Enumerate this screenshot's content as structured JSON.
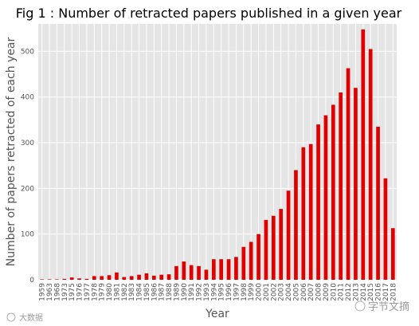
{
  "chart_data": {
    "type": "bar",
    "title": "Fig 1 : Number of retracted papers published in a given year",
    "xlabel": "Year",
    "ylabel": "Number of papers retracted of each year",
    "ylim": [
      0,
      560
    ],
    "yticks": [
      0,
      100,
      200,
      300,
      400,
      500
    ],
    "grid": true,
    "legend": "none",
    "bar_color": "#e00000",
    "background_color": "#e5e5e5",
    "categories": [
      "1959",
      "1963",
      "1968",
      "1973",
      "1975",
      "1976",
      "1977",
      "1978",
      "1979",
      "1980",
      "1981",
      "1982",
      "1983",
      "1984",
      "1985",
      "1986",
      "1987",
      "1988",
      "1989",
      "1990",
      "1991",
      "1992",
      "1993",
      "1994",
      "1995",
      "1996",
      "1997",
      "1998",
      "1999",
      "2000",
      "2001",
      "2002",
      "2003",
      "2004",
      "2005",
      "2006",
      "2007",
      "2008",
      "2009",
      "2010",
      "2011",
      "2012",
      "2013",
      "2014",
      "2015",
      "2016",
      "2017",
      "2018"
    ],
    "values": [
      1,
      1,
      1,
      2,
      5,
      3,
      2,
      8,
      8,
      10,
      16,
      6,
      8,
      11,
      14,
      9,
      11,
      12,
      30,
      40,
      32,
      30,
      22,
      45,
      45,
      45,
      50,
      72,
      83,
      100,
      131,
      140,
      155,
      195,
      240,
      290,
      297,
      340,
      360,
      383,
      410,
      463,
      420,
      548,
      505,
      335,
      222,
      113
    ]
  },
  "watermark": {
    "left_text": "大数据",
    "right_text": "字节文摘"
  }
}
